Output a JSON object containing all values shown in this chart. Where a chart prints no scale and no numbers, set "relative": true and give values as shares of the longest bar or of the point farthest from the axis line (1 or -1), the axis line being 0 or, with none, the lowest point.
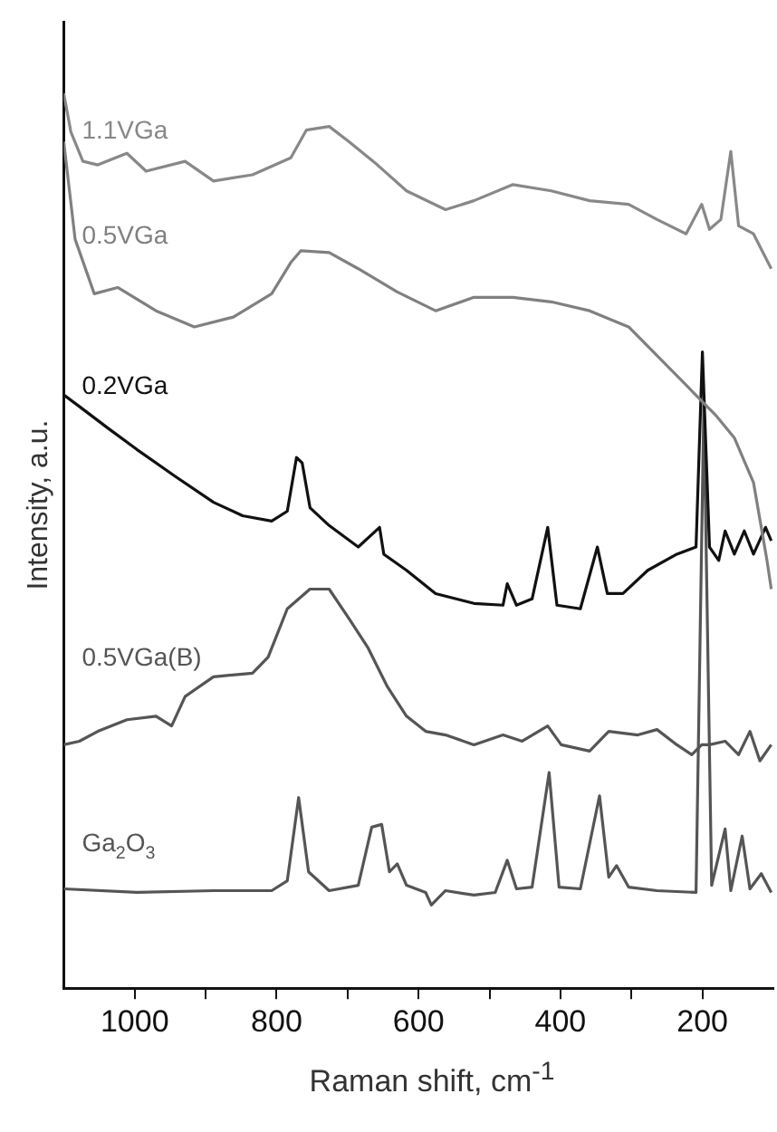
{
  "chart_data": {
    "type": "line",
    "xlabel": "Raman shift, cm$^{-1}$",
    "ylabel": "Intensity, a.u.",
    "relative": true,
    "xlim": [
      1100,
      100
    ],
    "xticks": [
      1000,
      {
        "value": 900,
        "label": null
      },
      800,
      {
        "value": 700,
        "label": null
      },
      600,
      {
        "value": 500,
        "label": null
      },
      400,
      {
        "value": 300,
        "label": null
      },
      200
    ],
    "grid": false,
    "legend": false,
    "series": [
      {
        "name": "1.1VGa",
        "color": "#888888",
        "x": [
          1100,
          1090,
          1073,
          1052,
          1011,
          984,
          929,
          889,
          834,
          780,
          758,
          726,
          698,
          658,
          617,
          562,
          522,
          467,
          413,
          359,
          304,
          264,
          223,
          201,
          190,
          174,
          160,
          149,
          128,
          103
        ],
        "values": [
          1.0,
          0.957,
          0.924,
          0.92,
          0.933,
          0.913,
          0.924,
          0.902,
          0.909,
          0.928,
          0.959,
          0.963,
          0.946,
          0.92,
          0.891,
          0.87,
          0.88,
          0.898,
          0.891,
          0.88,
          0.876,
          0.859,
          0.843,
          0.876,
          0.848,
          0.859,
          0.935,
          0.852,
          0.843,
          0.804
        ]
      },
      {
        "name": "0.5VGa",
        "color": "#808080",
        "x": [
          1100,
          1084,
          1057,
          1024,
          970,
          916,
          861,
          807,
          780,
          766,
          726,
          685,
          630,
          576,
          522,
          467,
          413,
          359,
          304,
          264,
          223,
          196,
          182,
          155,
          128,
          109,
          103
        ],
        "values": [
          0.946,
          0.837,
          0.776,
          0.783,
          0.757,
          0.739,
          0.75,
          0.776,
          0.811,
          0.824,
          0.822,
          0.804,
          0.778,
          0.757,
          0.772,
          0.772,
          0.767,
          0.757,
          0.739,
          0.707,
          0.674,
          0.652,
          0.641,
          0.615,
          0.565,
          0.478,
          0.446
        ]
      },
      {
        "name": "0.2VGa",
        "color": "#111111",
        "x": [
          1100,
          1078,
          1038,
          997,
          943,
          889,
          848,
          807,
          785,
          772,
          764,
          753,
          726,
          685,
          655,
          649,
          617,
          576,
          522,
          481,
          475,
          462,
          440,
          418,
          405,
          372,
          348,
          334,
          312,
          277,
          236,
          209,
          200,
          190,
          177,
          168,
          155,
          141,
          128,
          111,
          103
        ],
        "values": [
          0.663,
          0.65,
          0.626,
          0.602,
          0.572,
          0.543,
          0.528,
          0.522,
          0.533,
          0.593,
          0.587,
          0.537,
          0.517,
          0.493,
          0.515,
          0.485,
          0.467,
          0.441,
          0.43,
          0.428,
          0.452,
          0.428,
          0.435,
          0.515,
          0.428,
          0.424,
          0.493,
          0.441,
          0.441,
          0.467,
          0.485,
          0.493,
          0.711,
          0.493,
          0.478,
          0.511,
          0.485,
          0.511,
          0.485,
          0.515,
          0.5
        ]
      },
      {
        "name": "0.5VGa(B)",
        "color": "#555555",
        "x": [
          1100,
          1078,
          1052,
          1011,
          970,
          948,
          929,
          889,
          834,
          812,
          785,
          753,
          726,
          698,
          671,
          644,
          617,
          590,
          562,
          522,
          481,
          454,
          418,
          399,
          359,
          332,
          291,
          264,
          236,
          215,
          201,
          190,
          168,
          149,
          133,
          119,
          103
        ],
        "values": [
          0.272,
          0.276,
          0.287,
          0.3,
          0.304,
          0.293,
          0.326,
          0.348,
          0.352,
          0.37,
          0.424,
          0.446,
          0.446,
          0.413,
          0.38,
          0.337,
          0.304,
          0.287,
          0.283,
          0.272,
          0.283,
          0.276,
          0.293,
          0.272,
          0.265,
          0.287,
          0.283,
          0.289,
          0.272,
          0.261,
          0.272,
          0.272,
          0.276,
          0.261,
          0.287,
          0.254,
          0.272
        ]
      },
      {
        "name": "Ga$_{2}$O$_{3}$",
        "color": "#555555",
        "x": [
          1100,
          997,
          889,
          807,
          785,
          769,
          755,
          726,
          685,
          666,
          652,
          641,
          630,
          617,
          590,
          582,
          562,
          522,
          492,
          475,
          462,
          440,
          416,
          402,
          372,
          345,
          332,
          321,
          304,
          264,
          209,
          198,
          187,
          168,
          160,
          144,
          133,
          117,
          103
        ],
        "values": [
          0.111,
          0.107,
          0.109,
          0.109,
          0.12,
          0.213,
          0.13,
          0.109,
          0.115,
          0.18,
          0.183,
          0.13,
          0.139,
          0.115,
          0.107,
          0.093,
          0.109,
          0.104,
          0.107,
          0.143,
          0.111,
          0.113,
          0.241,
          0.113,
          0.111,
          0.215,
          0.124,
          0.137,
          0.113,
          0.109,
          0.107,
          0.652,
          0.115,
          0.178,
          0.109,
          0.17,
          0.111,
          0.128,
          0.107
        ]
      }
    ]
  }
}
